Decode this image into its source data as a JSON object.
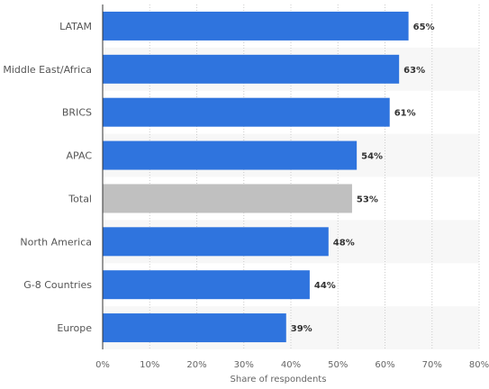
{
  "chart_data": {
    "type": "bar",
    "orientation": "horizontal",
    "categories": [
      "LATAM",
      "Middle East/Africa",
      "BRICS",
      "APAC",
      "Total",
      "North America",
      "G-8 Countries",
      "Europe"
    ],
    "values": [
      65,
      63,
      61,
      54,
      53,
      48,
      44,
      39
    ],
    "value_labels": [
      "65%",
      "63%",
      "61%",
      "54%",
      "53%",
      "48%",
      "44%",
      "39%"
    ],
    "highlighted_category": "Total",
    "xlim": [
      0,
      80
    ],
    "x_ticks": [
      "0%",
      "10%",
      "20%",
      "30%",
      "40%",
      "50%",
      "60%",
      "70%",
      "80%"
    ],
    "xlabel": "Share of respondents",
    "ylabel": "",
    "title": "",
    "grid": "vertical dashed",
    "colors": {
      "bar": "#2f74de",
      "highlight_bar": "#c0c0c0",
      "band": "#f7f7f7",
      "grid": "#cccccc",
      "axis": "#333333"
    }
  }
}
